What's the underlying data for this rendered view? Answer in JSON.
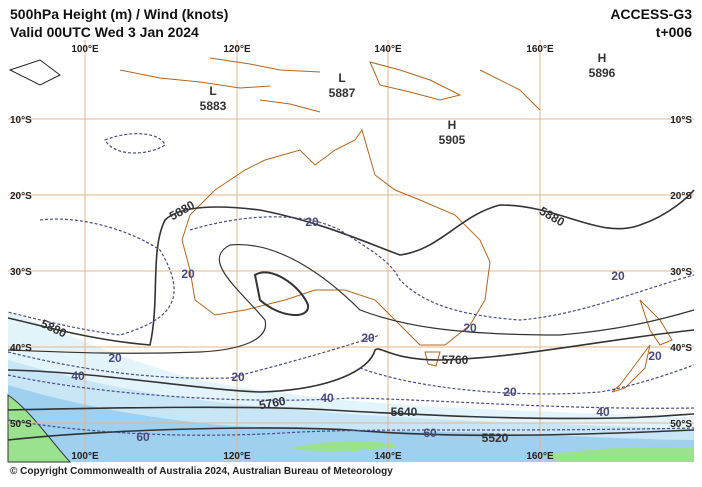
{
  "header": {
    "title": "500hPa Height (m) / Wind (knots)",
    "valid": "Valid 00UTC Wed 3 Jan 2024",
    "model": "ACCESS-G3",
    "lead": "t+006"
  },
  "map": {
    "lon_labels": [
      "100°E",
      "120°E",
      "140°E",
      "160°E"
    ],
    "lat_labels": [
      "10°S",
      "20°S",
      "30°S",
      "40°S",
      "50°S"
    ],
    "systems": [
      {
        "letter": "L",
        "value": "5883"
      },
      {
        "letter": "L",
        "value": "5887"
      },
      {
        "letter": "H",
        "value": "5905"
      },
      {
        "letter": "H",
        "value": "5896"
      }
    ],
    "height_labels": [
      "5880",
      "5880",
      "5880",
      "5760",
      "5760",
      "5640",
      "5520"
    ],
    "wind_labels": [
      "20",
      "20",
      "20",
      "20",
      "20",
      "20",
      "20",
      "20",
      "20",
      "40",
      "40",
      "40",
      "60",
      "60"
    ]
  },
  "footer": {
    "copyright": "© Copyright Commonwealth of Australia 2024, Australian Bureau of Meteorology"
  }
}
